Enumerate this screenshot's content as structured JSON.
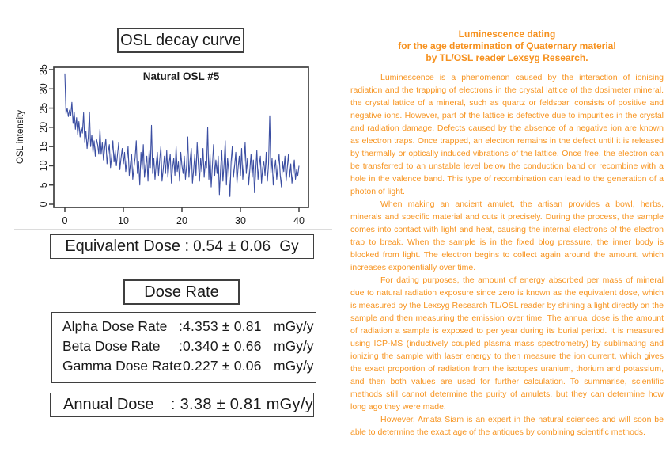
{
  "left": {
    "chart_box_title": "OSL decay curve",
    "equivalent_dose": {
      "label": "Equivalent Dose :",
      "value": "0.54 ± 0.06",
      "unit": "Gy"
    },
    "dose_rate_title": "Dose Rate",
    "dose_rates": [
      {
        "label": "Alpha Dose Rate",
        "value": ":4.353 ± 0.81",
        "unit": "mGy/y"
      },
      {
        "label": "Beta Dose Rate",
        "value": ":0.340 ± 0.66",
        "unit": "mGy/y"
      },
      {
        "label": "Gamma Dose Rate",
        "value": ":0.227 ± 0.06",
        "unit": "mGy/y"
      }
    ],
    "annual_dose": {
      "label": "Annual Dose",
      "value": ": 3.38 ± 0.81 mGy/y"
    }
  },
  "chart_data": {
    "type": "line",
    "title": "Natural OSL #5",
    "xlabel": "",
    "ylabel": "OSL intensity",
    "xlim": [
      0,
      40
    ],
    "ylim": [
      0,
      35
    ],
    "x_ticks": [
      0,
      10,
      20,
      30,
      40
    ],
    "y_ticks": [
      0,
      5,
      10,
      15,
      20,
      25,
      30,
      35
    ],
    "grid": false,
    "line_color": "#3b4ea2",
    "x_step": 0.2,
    "y_values": [
      34,
      23.5,
      25,
      22.8,
      24.5,
      23,
      26.5,
      21,
      24,
      19.5,
      22.5,
      18,
      21.5,
      17.5,
      20,
      18.5,
      23.8,
      16,
      19,
      14.5,
      17.5,
      24,
      15,
      18,
      13.5,
      16.5,
      12.5,
      17,
      15.5,
      13,
      19.5,
      13,
      16,
      11.5,
      14.5,
      17,
      10.5,
      13.5,
      15.5,
      9.5,
      12.5,
      16.5,
      11,
      14,
      10,
      13,
      16,
      9,
      12,
      14.5,
      10.5,
      13.5,
      8.5,
      11.5,
      15,
      7.5,
      10.5,
      13,
      6.5,
      9.5,
      12,
      16.5,
      8,
      11,
      5,
      13.5,
      9,
      15.5,
      7,
      10,
      12.5,
      6,
      14,
      9.5,
      20.5,
      8,
      12,
      6.5,
      10.5,
      13.5,
      7.5,
      11.5,
      15,
      6,
      9,
      12.5,
      8,
      14,
      7,
      10.5,
      13,
      5.5,
      9.5,
      12,
      7.5,
      15,
      8.5,
      11,
      6,
      13.5,
      10,
      8,
      12.5,
      6.5,
      10,
      17.5,
      7,
      11.5,
      14.5,
      5.5,
      9,
      13,
      7.5,
      16,
      10.5,
      6,
      12,
      8.5,
      14.5,
      7,
      11,
      9.5,
      20,
      6.5,
      13,
      4.5,
      10,
      15.5,
      7.5,
      11.5,
      8,
      12.5,
      2.5,
      9,
      14,
      6,
      10.5,
      16.5,
      5,
      12,
      8.5,
      2,
      11,
      15,
      7,
      10,
      13.5,
      5.5,
      9.5,
      12.5,
      7.5,
      14.5,
      6.5,
      10.5,
      16,
      8,
      12,
      5,
      9,
      13,
      7,
      11.5,
      3,
      8.5,
      14,
      6.5,
      10,
      12.5,
      5.5,
      9.5,
      11,
      7.5,
      13.5,
      6,
      10.5,
      23,
      8,
      12,
      5,
      9,
      11.5,
      6.5,
      10,
      13,
      7.5,
      4.5,
      11,
      8.5,
      12.5,
      6,
      9.5,
      13,
      7,
      10.5,
      5.5,
      8,
      11.5,
      6.5,
      9,
      7.5,
      10
    ]
  },
  "right": {
    "heading_color": "#f6911e",
    "body_color": "#f79420",
    "heading": [
      "Luminescence dating",
      "for the age determination of Quaternary material",
      "by TL/OSL reader Lexsyg Research."
    ],
    "paragraphs": [
      "Luminescence is a phenomenon caused by the interaction of ionising radiation and the trapping of electrons in the crystal lattice of the dosimeter mineral. the crystal lattice of a mineral, such as quartz or feldspar, consists of positive and negative ions. However, part of the lattice is defective due to impurities in the crystal and radiation damage. Defects caused by the absence of a negative ion are known as electron traps. Once trapped, an electron remains in the defect until it is released by thermally or optically induced vibrations of the lattice. Once free, the electron can be transferred to an unstable level below the conduction band or recombine with a hole in the valence band. This type of recombination can lead to the generation of a photon of light.",
      "When making an ancient amulet, the artisan provides a bowl, herbs, minerals and specific material and cuts it precisely. During the process, the sample comes into contact with light and heat, causing the internal electrons of the electron trap to break. When the sample is in the fixed blog pressure, the inner body is blocked from light. The electron begins to collect again around the amount, which increases exponentially over time.",
      "For dating purposes, the amount of energy absorbed per mass of mineral due to natural radiation exposure since zero is known as the equivalent dose, which is measured by the Lexsyg Research TL/OSL reader by shining a light directly on the sample and then measuring the emission over time. The annual dose is the amount of radiation a sample is exposed to per year during its burial period. It is measured using ICP-MS (inductively coupled plasma mass spectrometry) by sublimating and ionizing the sample with laser energy to then measure the ion current, which gives the exact proportion of radiation from the isotopes uranium, thorium and potassium, and then both values are used for further calculation. To summarise, scientific methods still cannot determine the purity of amulets, but they can determine how long ago they were made.",
      "However, Amata Siam is an expert in the natural sciences and will soon be able to determine the exact age of the antiques by combining scientific methods."
    ]
  }
}
